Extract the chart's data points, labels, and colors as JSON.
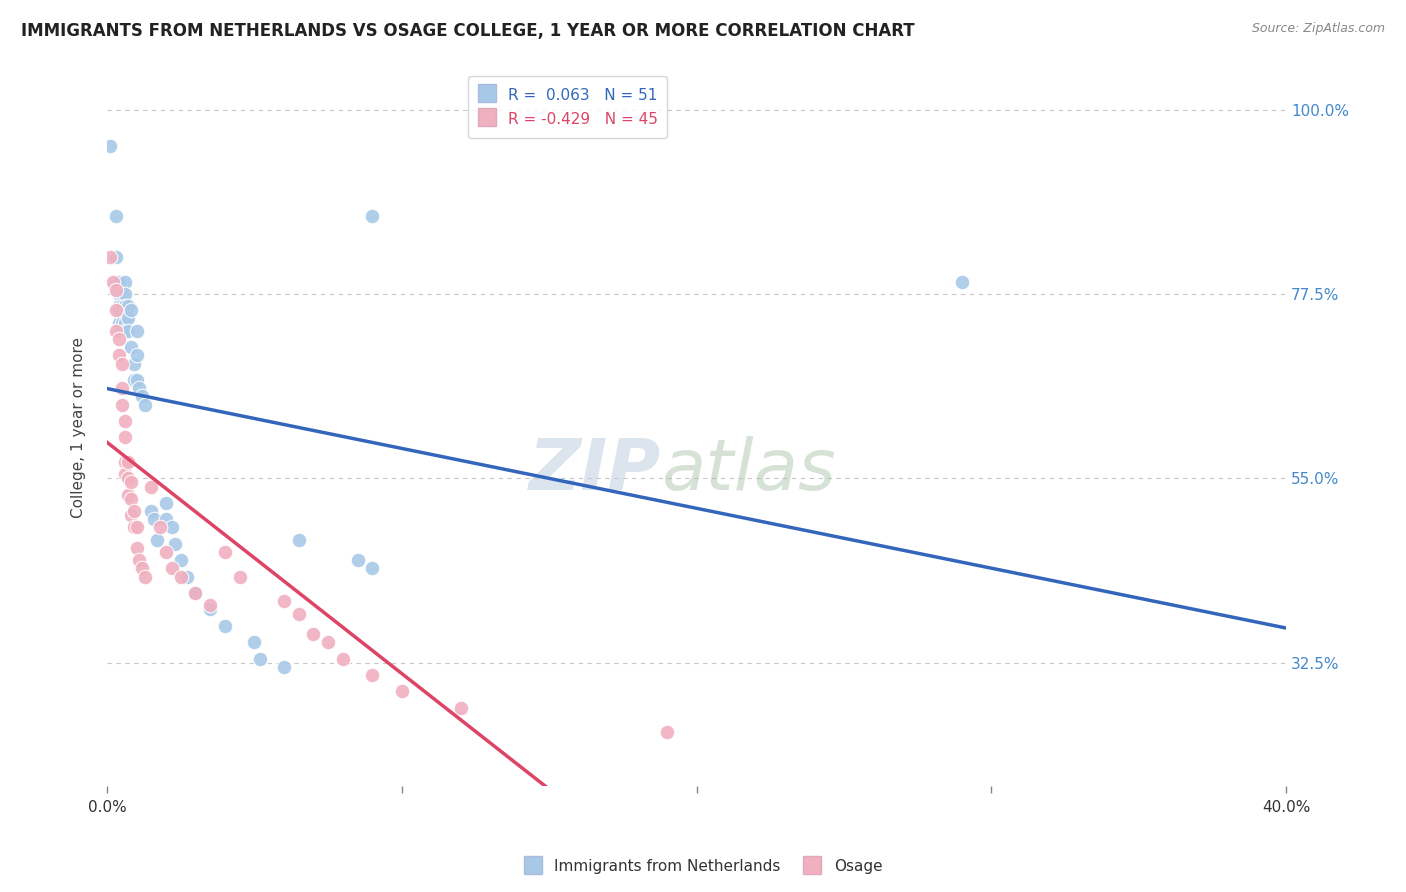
{
  "title": "IMMIGRANTS FROM NETHERLANDS VS OSAGE COLLEGE, 1 YEAR OR MORE CORRELATION CHART",
  "source_text": "Source: ZipAtlas.com",
  "ylabel": "College, 1 year or more",
  "xlim": [
    0.0,
    0.4
  ],
  "ylim": [
    0.175,
    1.05
  ],
  "ytick_labels": [
    "100.0%",
    "77.5%",
    "55.0%",
    "32.5%"
  ],
  "ytick_values": [
    1.0,
    0.775,
    0.55,
    0.325
  ],
  "grid_color": "#c8c8c8",
  "background_color": "#ffffff",
  "blue_color": "#a8c8e8",
  "pink_color": "#f0b0c0",
  "blue_line_color": "#3366bb",
  "pink_line_color": "#dd4466",
  "R_blue": 0.063,
  "N_blue": 51,
  "R_pink": -0.429,
  "N_pink": 45,
  "legend_label_blue": "Immigrants from Netherlands",
  "legend_label_pink": "Osage",
  "watermark_zip": "ZIP",
  "watermark_atlas": "atlas",
  "blue_points": [
    [
      0.001,
      0.955
    ],
    [
      0.003,
      0.87
    ],
    [
      0.003,
      0.82
    ],
    [
      0.003,
      0.79
    ],
    [
      0.004,
      0.79
    ],
    [
      0.004,
      0.775
    ],
    [
      0.004,
      0.76
    ],
    [
      0.004,
      0.755
    ],
    [
      0.004,
      0.74
    ],
    [
      0.005,
      0.775
    ],
    [
      0.005,
      0.76
    ],
    [
      0.005,
      0.74
    ],
    [
      0.005,
      0.73
    ],
    [
      0.006,
      0.79
    ],
    [
      0.006,
      0.775
    ],
    [
      0.006,
      0.76
    ],
    [
      0.006,
      0.74
    ],
    [
      0.006,
      0.73
    ],
    [
      0.007,
      0.76
    ],
    [
      0.007,
      0.745
    ],
    [
      0.007,
      0.73
    ],
    [
      0.008,
      0.755
    ],
    [
      0.008,
      0.71
    ],
    [
      0.009,
      0.69
    ],
    [
      0.009,
      0.67
    ],
    [
      0.01,
      0.73
    ],
    [
      0.01,
      0.7
    ],
    [
      0.01,
      0.67
    ],
    [
      0.011,
      0.66
    ],
    [
      0.012,
      0.65
    ],
    [
      0.013,
      0.64
    ],
    [
      0.015,
      0.51
    ],
    [
      0.016,
      0.5
    ],
    [
      0.017,
      0.475
    ],
    [
      0.02,
      0.52
    ],
    [
      0.02,
      0.5
    ],
    [
      0.022,
      0.49
    ],
    [
      0.023,
      0.47
    ],
    [
      0.025,
      0.45
    ],
    [
      0.027,
      0.43
    ],
    [
      0.03,
      0.41
    ],
    [
      0.035,
      0.39
    ],
    [
      0.04,
      0.37
    ],
    [
      0.05,
      0.35
    ],
    [
      0.052,
      0.33
    ],
    [
      0.06,
      0.32
    ],
    [
      0.065,
      0.475
    ],
    [
      0.085,
      0.45
    ],
    [
      0.09,
      0.44
    ],
    [
      0.09,
      0.87
    ],
    [
      0.29,
      0.79
    ]
  ],
  "pink_points": [
    [
      0.001,
      0.82
    ],
    [
      0.002,
      0.79
    ],
    [
      0.003,
      0.78
    ],
    [
      0.003,
      0.755
    ],
    [
      0.003,
      0.73
    ],
    [
      0.004,
      0.72
    ],
    [
      0.004,
      0.7
    ],
    [
      0.005,
      0.69
    ],
    [
      0.005,
      0.66
    ],
    [
      0.005,
      0.64
    ],
    [
      0.006,
      0.62
    ],
    [
      0.006,
      0.6
    ],
    [
      0.006,
      0.57
    ],
    [
      0.006,
      0.555
    ],
    [
      0.007,
      0.57
    ],
    [
      0.007,
      0.55
    ],
    [
      0.007,
      0.53
    ],
    [
      0.008,
      0.545
    ],
    [
      0.008,
      0.525
    ],
    [
      0.008,
      0.505
    ],
    [
      0.009,
      0.51
    ],
    [
      0.009,
      0.49
    ],
    [
      0.01,
      0.49
    ],
    [
      0.01,
      0.465
    ],
    [
      0.011,
      0.45
    ],
    [
      0.012,
      0.44
    ],
    [
      0.013,
      0.43
    ],
    [
      0.015,
      0.54
    ],
    [
      0.018,
      0.49
    ],
    [
      0.02,
      0.46
    ],
    [
      0.022,
      0.44
    ],
    [
      0.025,
      0.43
    ],
    [
      0.03,
      0.41
    ],
    [
      0.035,
      0.395
    ],
    [
      0.04,
      0.46
    ],
    [
      0.045,
      0.43
    ],
    [
      0.06,
      0.4
    ],
    [
      0.065,
      0.385
    ],
    [
      0.07,
      0.36
    ],
    [
      0.075,
      0.35
    ],
    [
      0.08,
      0.33
    ],
    [
      0.09,
      0.31
    ],
    [
      0.1,
      0.29
    ],
    [
      0.12,
      0.27
    ],
    [
      0.19,
      0.24
    ]
  ]
}
